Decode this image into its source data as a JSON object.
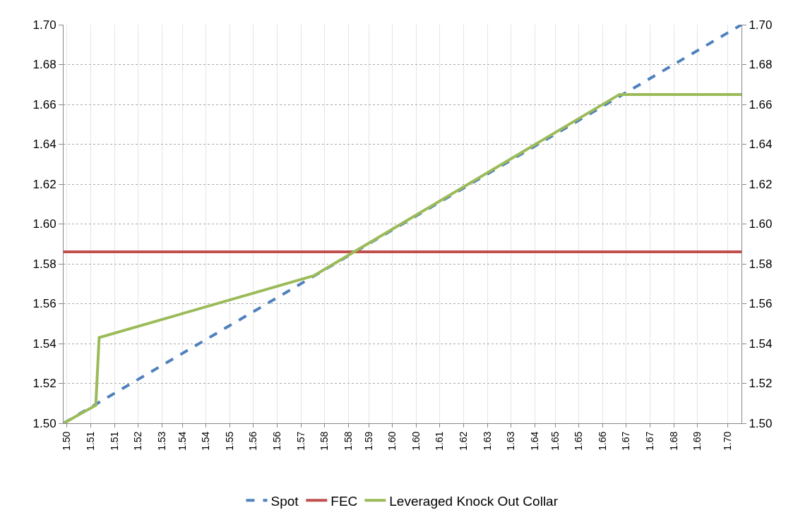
{
  "chart_data": {
    "type": "line",
    "series": [
      {
        "name": "Spot",
        "color": "#4f81bd",
        "line_style": "dashed",
        "x": [
          1.5,
          1.7
        ],
        "values": [
          1.5,
          1.7
        ]
      },
      {
        "name": "FEC",
        "color": "#c0504d",
        "line_style": "solid",
        "x": [
          1.5,
          1.7
        ],
        "values": [
          1.586,
          1.586
        ]
      },
      {
        "name": "Leveraged Knock Out Collar",
        "color": "#9bbb59",
        "line_style": "solid",
        "x": [
          1.5,
          1.5095,
          1.5105,
          1.5738,
          1.664,
          1.7
        ],
        "values": [
          1.5,
          1.509,
          1.543,
          1.574,
          1.665,
          1.665
        ]
      }
    ],
    "xlim": [
      1.5,
      1.7
    ],
    "xticks": [
      {
        "value": 1.501,
        "label": "1.50"
      },
      {
        "value": 1.508,
        "label": "1.51"
      },
      {
        "value": 1.515,
        "label": "1.51"
      },
      {
        "value": 1.522,
        "label": "1.52"
      },
      {
        "value": 1.529,
        "label": "1.53"
      },
      {
        "value": 1.535,
        "label": "1.54"
      },
      {
        "value": 1.542,
        "label": "1.54"
      },
      {
        "value": 1.549,
        "label": "1.55"
      },
      {
        "value": 1.556,
        "label": "1.56"
      },
      {
        "value": 1.563,
        "label": "1.56"
      },
      {
        "value": 1.57,
        "label": "1.57"
      },
      {
        "value": 1.577,
        "label": "1.58"
      },
      {
        "value": 1.584,
        "label": "1.58"
      },
      {
        "value": 1.59,
        "label": "1.59"
      },
      {
        "value": 1.597,
        "label": "1.60"
      },
      {
        "value": 1.604,
        "label": "1.60"
      },
      {
        "value": 1.611,
        "label": "1.61"
      },
      {
        "value": 1.618,
        "label": "1.62"
      },
      {
        "value": 1.625,
        "label": "1.63"
      },
      {
        "value": 1.632,
        "label": "1.63"
      },
      {
        "value": 1.639,
        "label": "1.64"
      },
      {
        "value": 1.645,
        "label": "1.65"
      },
      {
        "value": 1.652,
        "label": "1.65"
      },
      {
        "value": 1.659,
        "label": "1.66"
      },
      {
        "value": 1.666,
        "label": "1.67"
      },
      {
        "value": 1.673,
        "label": "1.67"
      },
      {
        "value": 1.68,
        "label": "1.68"
      },
      {
        "value": 1.687,
        "label": "1.69"
      },
      {
        "value": 1.696,
        "label": "1.70"
      }
    ],
    "ylim": [
      1.5,
      1.7
    ],
    "yticks": [
      {
        "value": 1.5,
        "label": "1.50"
      },
      {
        "value": 1.52,
        "label": "1.52"
      },
      {
        "value": 1.54,
        "label": "1.54"
      },
      {
        "value": 1.56,
        "label": "1.56"
      },
      {
        "value": 1.58,
        "label": "1.58"
      },
      {
        "value": 1.6,
        "label": "1.60"
      },
      {
        "value": 1.62,
        "label": "1.62"
      },
      {
        "value": 1.64,
        "label": "1.64"
      },
      {
        "value": 1.66,
        "label": "1.66"
      },
      {
        "value": 1.68,
        "label": "1.68"
      },
      {
        "value": 1.7,
        "label": "1.70"
      }
    ],
    "y2lim": [
      1.5,
      1.7
    ],
    "y2ticks": [
      {
        "value": 1.5,
        "label": "1.50"
      },
      {
        "value": 1.52,
        "label": "1.52"
      },
      {
        "value": 1.54,
        "label": "1.54"
      },
      {
        "value": 1.56,
        "label": "1.56"
      },
      {
        "value": 1.58,
        "label": "1.58"
      },
      {
        "value": 1.6,
        "label": "1.60"
      },
      {
        "value": 1.62,
        "label": "1.62"
      },
      {
        "value": 1.64,
        "label": "1.64"
      },
      {
        "value": 1.66,
        "label": "1.66"
      },
      {
        "value": 1.68,
        "label": "1.68"
      },
      {
        "value": 1.7,
        "label": "1.70"
      }
    ],
    "grid": true,
    "legend": "bottom",
    "marker": "none"
  }
}
